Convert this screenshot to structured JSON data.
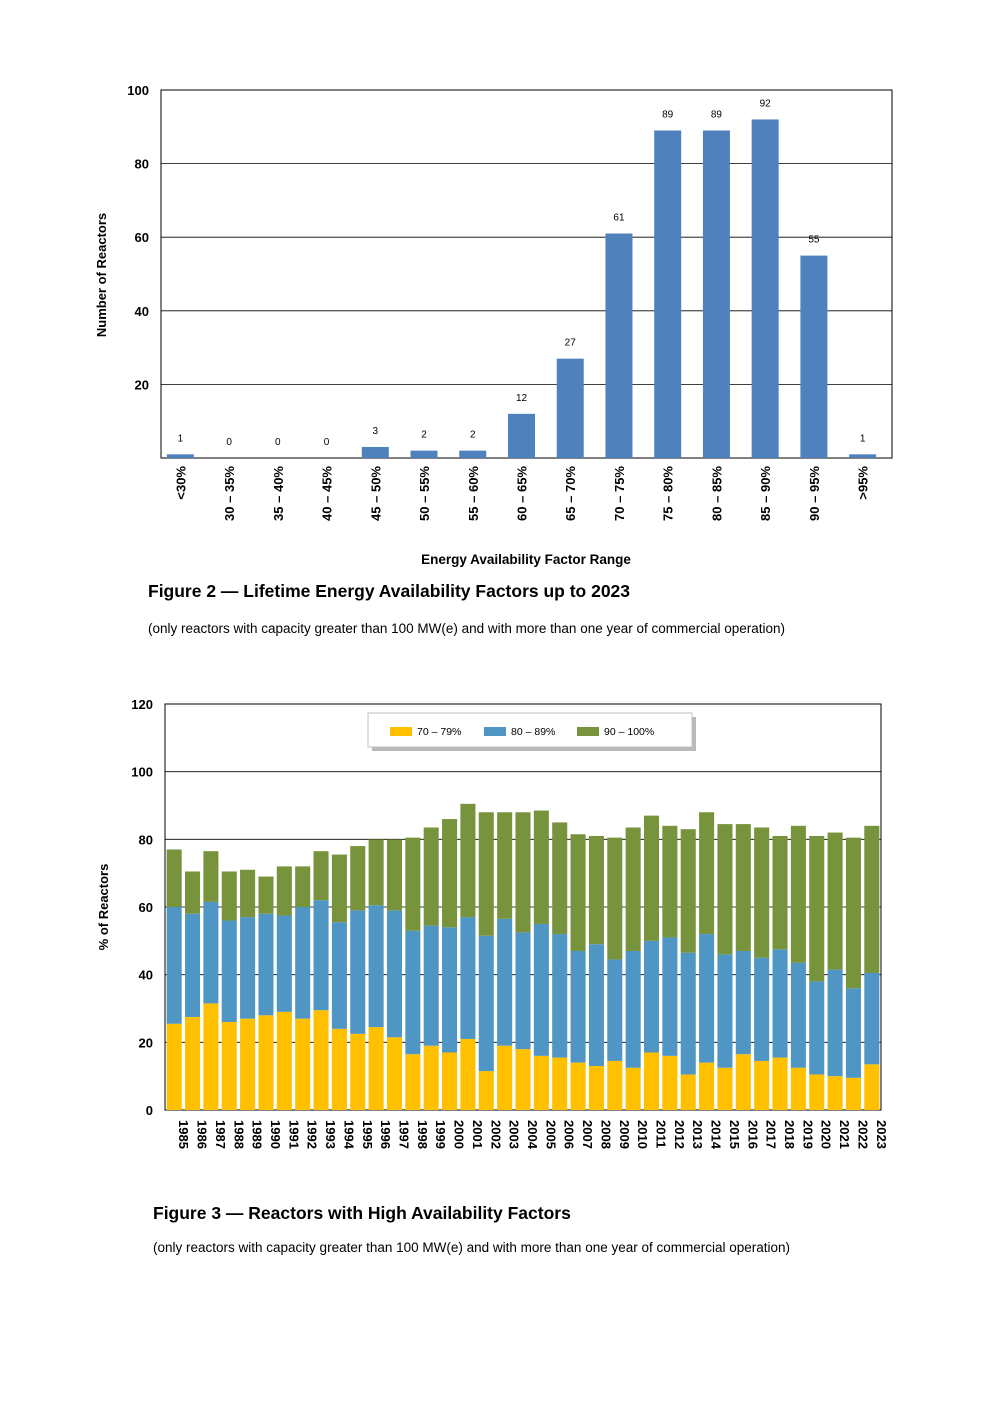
{
  "chart_data": [
    {
      "type": "bar",
      "title": "Figure 2 — Lifetime Energy Availability Factors up to 2023",
      "subtitle": "(only reactors with capacity greater than 100 MW(e) and with more than one year of commercial operation)",
      "xlabel": "Energy Availability Factor Range",
      "ylabel": "Number of Reactors",
      "ylim": [
        0,
        100
      ],
      "yticks": [
        20,
        40,
        60,
        80,
        100
      ],
      "grid": true,
      "categories": [
        "<30%",
        "30 – 35%",
        "35 – 40%",
        "40 – 45%",
        "45 – 50%",
        "50 – 55%",
        "55 – 60%",
        "60 – 65%",
        "65 – 70%",
        "70 – 75%",
        "75 – 80%",
        "80 – 85%",
        "85 – 90%",
        "90 – 95%",
        ">95%"
      ],
      "values": [
        1,
        0,
        0,
        0,
        3,
        2,
        2,
        12,
        27,
        61,
        89,
        89,
        92,
        55,
        1
      ],
      "color": "#4f81bd"
    },
    {
      "type": "bar",
      "stacked": true,
      "title": "Figure 3 — Reactors with High Availability Factors",
      "subtitle": "(only reactors with capacity greater than 100 MW(e) and with more than one year of commercial operation)",
      "ylabel": "% of Reactors",
      "ylim": [
        0,
        120
      ],
      "yticks": [
        0,
        20,
        40,
        60,
        80,
        100,
        120
      ],
      "grid": true,
      "legend": "top-center",
      "categories": [
        "1985",
        "1986",
        "1987",
        "1988",
        "1989",
        "1990",
        "1991",
        "1992",
        "1993",
        "1994",
        "1995",
        "1996",
        "1997",
        "1998",
        "1999",
        "2000",
        "2001",
        "2002",
        "2003",
        "2004",
        "2005",
        "2006",
        "2007",
        "2008",
        "2009",
        "2010",
        "2011",
        "2012",
        "2013",
        "2014",
        "2015",
        "2016",
        "2017",
        "2018",
        "2019",
        "2020",
        "2021",
        "2022",
        "2023"
      ],
      "series": [
        {
          "name": "70 – 79%",
          "color": "#ffc000",
          "values": [
            25.5,
            27.5,
            31.5,
            26,
            27,
            28,
            29,
            27,
            29.5,
            24,
            22.5,
            24.5,
            21.5,
            16.5,
            19,
            17,
            21,
            11.5,
            19,
            18,
            16,
            15.5,
            14,
            13,
            14.5,
            12.5,
            17,
            16,
            10.5,
            14,
            12.5,
            16.5,
            14.5,
            15.5,
            12.5,
            10.5,
            10,
            9.5,
            13.5
          ]
        },
        {
          "name": "80 – 89%",
          "color": "#4f96c4",
          "values": [
            34.5,
            30.5,
            30,
            30,
            30,
            30,
            28.5,
            33,
            32.5,
            31.5,
            36.5,
            36,
            37.5,
            36.5,
            35.5,
            37,
            36,
            40,
            37.5,
            34.5,
            39,
            36.5,
            33,
            36,
            30,
            34.5,
            33,
            35,
            36,
            38,
            33.5,
            30.5,
            30.5,
            32,
            31,
            27.5,
            31.5,
            26.5,
            27
          ]
        },
        {
          "name": "90 – 100%",
          "color": "#77933c",
          "values": [
            17,
            12.5,
            15,
            14.5,
            14,
            11,
            14.5,
            12,
            14.5,
            20,
            19,
            19.5,
            21,
            27.5,
            29,
            32,
            33.5,
            36.5,
            31.5,
            35.5,
            33.5,
            33,
            34.5,
            32,
            36,
            36.5,
            37,
            33,
            36.5,
            36,
            38.5,
            37.5,
            38.5,
            33.5,
            40.5,
            43,
            40.5,
            44.5,
            43.5
          ]
        }
      ]
    }
  ]
}
